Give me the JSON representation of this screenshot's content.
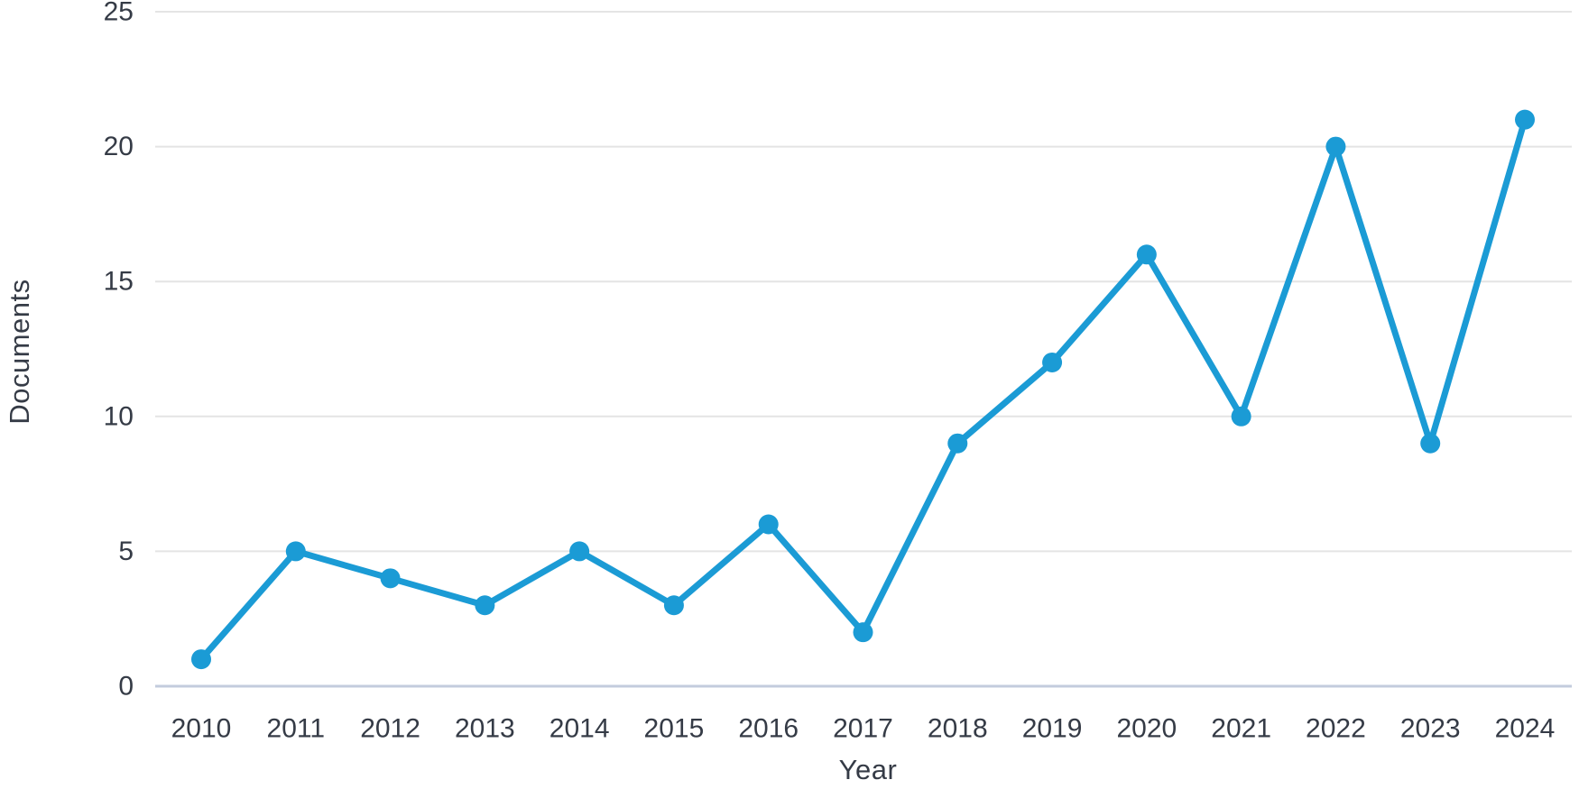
{
  "chart_data": {
    "type": "line",
    "title": "",
    "xlabel": "Year",
    "ylabel": "Documents",
    "series_name": "Documents",
    "x": [
      2010,
      2011,
      2012,
      2013,
      2014,
      2015,
      2016,
      2017,
      2018,
      2019,
      2020,
      2021,
      2022,
      2023,
      2024
    ],
    "values": [
      1,
      5,
      4,
      3,
      5,
      3,
      6,
      2,
      9,
      12,
      16,
      10,
      20,
      9,
      21
    ],
    "ylim": [
      0,
      25
    ],
    "yticks": [
      0,
      5,
      10,
      15,
      20,
      25
    ],
    "grid": "horizontal",
    "legend": "none"
  },
  "style": {
    "line_color": "#1b9bd5",
    "marker_color": "#1b9bd5",
    "grid_color": "#e4e4e4",
    "baseline_color": "#c3ccdd",
    "tick_text_color": "#353b46",
    "axis_title_color": "#353b46"
  }
}
